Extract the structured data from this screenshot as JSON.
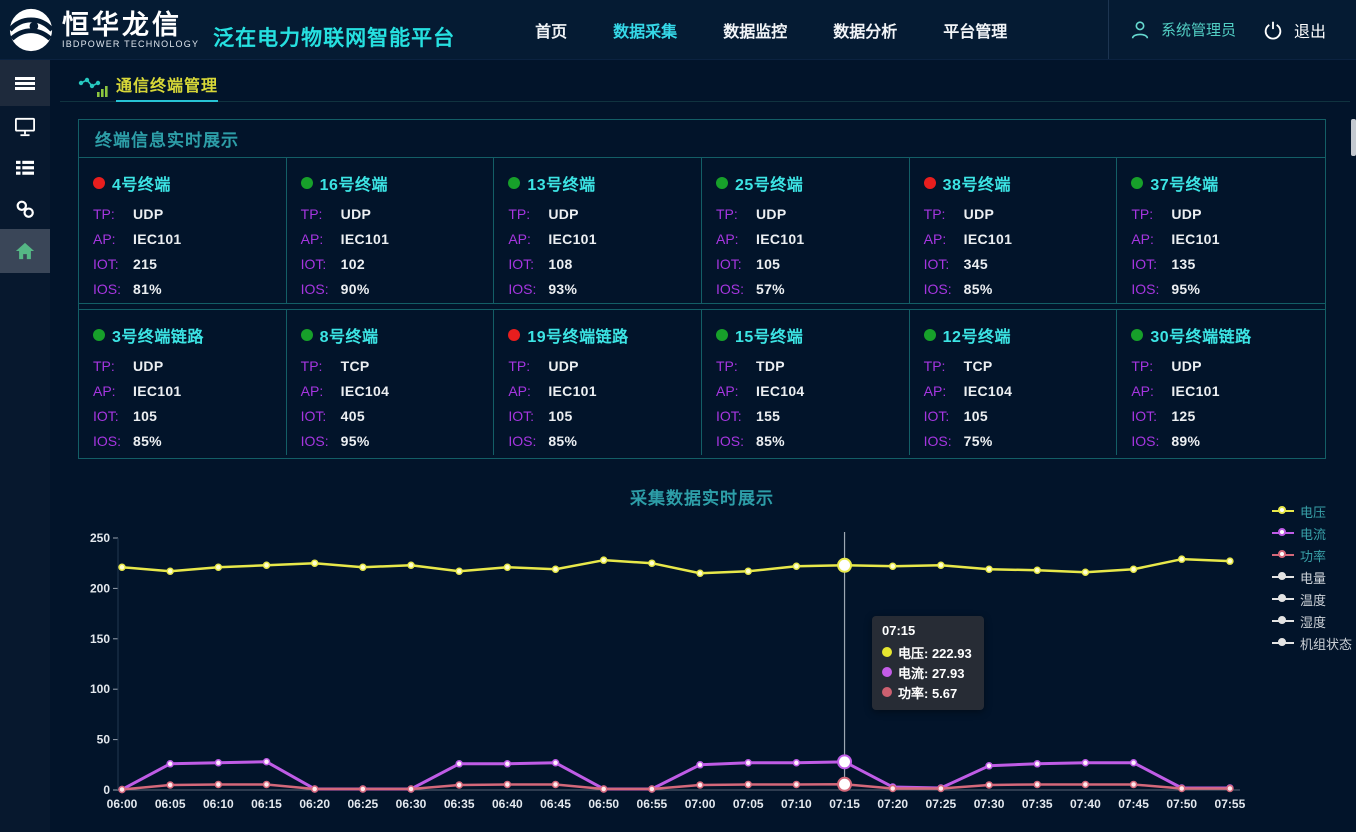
{
  "header": {
    "logo_cn": "恒华龙信",
    "logo_en": "IBDPOWER TECHNOLOGY",
    "platform_title": "泛在电力物联网智能平台",
    "nav": [
      {
        "label": "首页",
        "active": false
      },
      {
        "label": "数据采集",
        "active": true
      },
      {
        "label": "数据监控",
        "active": false
      },
      {
        "label": "数据分析",
        "active": false
      },
      {
        "label": "平台管理",
        "active": false
      }
    ],
    "user": {
      "name": "系统管理员",
      "logout": "退出"
    }
  },
  "sidebar": {
    "icons": [
      "menu",
      "monitor",
      "list",
      "link",
      "home"
    ]
  },
  "breadcrumb": {
    "label": "通信终端管理"
  },
  "terminal_panel": {
    "title": "终端信息实时展示",
    "field_labels": {
      "tp": "TP:",
      "ap": "AP:",
      "iot": "IOT:",
      "ios": "IOS:"
    },
    "terminals": [
      {
        "name": "4号终端",
        "status": "red",
        "tp": "UDP",
        "ap": "IEC101",
        "iot": "215",
        "ios": "81%"
      },
      {
        "name": "16号终端",
        "status": "green",
        "tp": "UDP",
        "ap": "IEC101",
        "iot": "102",
        "ios": "90%"
      },
      {
        "name": "13号终端",
        "status": "green",
        "tp": "UDP",
        "ap": "IEC101",
        "iot": "108",
        "ios": "93%"
      },
      {
        "name": "25号终端",
        "status": "green",
        "tp": "UDP",
        "ap": "IEC101",
        "iot": "105",
        "ios": "57%"
      },
      {
        "name": "38号终端",
        "status": "red",
        "tp": "UDP",
        "ap": "IEC101",
        "iot": "345",
        "ios": "85%"
      },
      {
        "name": "37号终端",
        "status": "green",
        "tp": "UDP",
        "ap": "IEC101",
        "iot": "135",
        "ios": "95%"
      },
      {
        "name": "3号终端链路",
        "status": "green",
        "tp": "UDP",
        "ap": "IEC101",
        "iot": "105",
        "ios": "85%"
      },
      {
        "name": "8号终端",
        "status": "green",
        "tp": "TCP",
        "ap": "IEC104",
        "iot": "405",
        "ios": "95%"
      },
      {
        "name": "19号终端链路",
        "status": "red",
        "tp": "UDP",
        "ap": "IEC101",
        "iot": "105",
        "ios": "85%"
      },
      {
        "name": "15号终端",
        "status": "green",
        "tp": "TDP",
        "ap": "IEC104",
        "iot": "155",
        "ios": "85%"
      },
      {
        "name": "12号终端",
        "status": "green",
        "tp": "TCP",
        "ap": "IEC104",
        "iot": "105",
        "ios": "75%"
      },
      {
        "name": "30号终端链路",
        "status": "green",
        "tp": "UDP",
        "ap": "IEC101",
        "iot": "125",
        "ios": "89%"
      }
    ]
  },
  "chart": {
    "title": "采集数据实时展示",
    "legend": [
      {
        "label": "电压",
        "color": "#e8e84a",
        "active": true
      },
      {
        "label": "电流",
        "color": "#bf5ce6",
        "active": true
      },
      {
        "label": "功率",
        "color": "#d4687a",
        "active": true
      },
      {
        "label": "电量",
        "color": "#e3e3e3",
        "active": false
      },
      {
        "label": "温度",
        "color": "#e3e3e3",
        "active": false
      },
      {
        "label": "湿度",
        "color": "#e3e3e3",
        "active": false
      },
      {
        "label": "机组状态",
        "color": "#e3e3e3",
        "active": false
      }
    ],
    "tooltip": {
      "time": "07:15",
      "rows": [
        {
          "label": "电压",
          "value": "222.93",
          "color": "#e6e630"
        },
        {
          "label": "电流",
          "value": "27.93",
          "color": "#c45ce8"
        },
        {
          "label": "功率",
          "value": "5.67",
          "color": "#cc6070"
        }
      ]
    }
  },
  "chart_data": {
    "type": "line",
    "x": [
      "06:00",
      "06:05",
      "06:10",
      "06:15",
      "06:20",
      "06:25",
      "06:30",
      "06:35",
      "06:40",
      "06:45",
      "06:50",
      "06:55",
      "07:00",
      "07:05",
      "07:10",
      "07:15",
      "07:20",
      "07:25",
      "07:30",
      "07:35",
      "07:40",
      "07:45",
      "07:50",
      "07:55"
    ],
    "yticks": [
      0,
      50,
      100,
      150,
      200,
      250
    ],
    "ylim": [
      0,
      250
    ],
    "xlabel": "",
    "ylabel": "",
    "grid": false,
    "legend_position": "right",
    "highlight_index": 15,
    "series": [
      {
        "name": "电压",
        "color": "#e8e84a",
        "marker_fill": "#ffffd0",
        "width": 2.5,
        "values": [
          221,
          217,
          221,
          223,
          225,
          221,
          223,
          217,
          221,
          219,
          228,
          225,
          215,
          217,
          222,
          222.93,
          222,
          223,
          219,
          218,
          216,
          219,
          229,
          227
        ]
      },
      {
        "name": "电流",
        "color": "#bf5ce6",
        "marker_fill": "#ffeefc",
        "width": 3,
        "values": [
          0.5,
          26,
          27,
          28,
          1,
          1,
          1,
          26,
          26,
          27,
          1,
          1,
          25,
          27,
          27,
          27.93,
          3,
          2,
          24,
          26,
          27,
          27,
          2,
          2
        ]
      },
      {
        "name": "功率",
        "color": "#d4687a",
        "marker_fill": "#ffe9ec",
        "width": 2.5,
        "values": [
          0.5,
          5,
          5.5,
          5.5,
          1,
          1,
          1,
          5,
          5.5,
          5.5,
          1,
          1,
          5,
          5.5,
          5.5,
          5.67,
          1.5,
          1.5,
          5,
          5.5,
          5.5,
          5.5,
          1.5,
          1.5
        ]
      }
    ],
    "inactive_series": [
      "电量",
      "温度",
      "湿度",
      "机组状态"
    ]
  },
  "colors": {
    "accent_cyan": "#26e0e0",
    "panel_border": "#135e66",
    "panel_title": "#2d9ea8",
    "card_title": "#3ce4e4",
    "field_label": "#a636e0",
    "breadcrumb": "#d8d838",
    "status": {
      "red": "#e81e1e",
      "green": "#17a02a"
    }
  }
}
